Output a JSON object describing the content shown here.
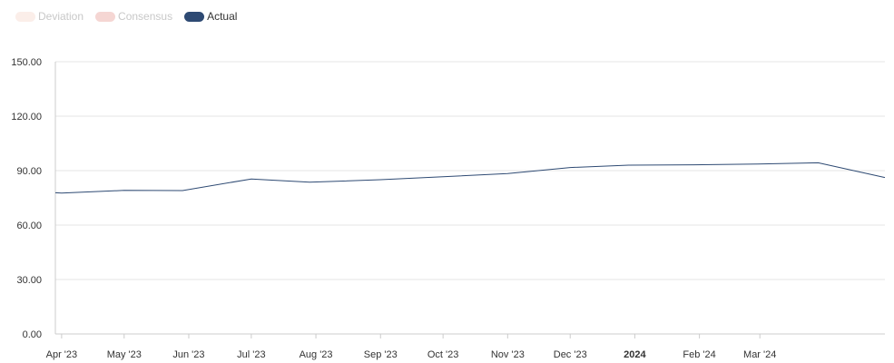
{
  "legend": [
    {
      "label": "Deviation",
      "color": "#fbeee9",
      "active": false
    },
    {
      "label": "Consensus",
      "color": "#f5d6d3",
      "active": false
    },
    {
      "label": "Actual",
      "color": "#2e4a73",
      "active": true
    }
  ],
  "chart_data": {
    "type": "line",
    "title": "",
    "xlabel": "",
    "ylabel": "",
    "ylim": [
      0,
      150
    ],
    "y_ticks": [
      "150.00",
      "120.00",
      "90.00",
      "60.00",
      "30.00",
      "0.00"
    ],
    "x_ticks": [
      {
        "label": "Apr '23",
        "date": "2023-04-01",
        "bold": false
      },
      {
        "label": "May '23",
        "date": "2023-05-01",
        "bold": false
      },
      {
        "label": "Jun '23",
        "date": "2023-06-01",
        "bold": false
      },
      {
        "label": "Jul '23",
        "date": "2023-07-01",
        "bold": false
      },
      {
        "label": "Aug '23",
        "date": "2023-08-01",
        "bold": false
      },
      {
        "label": "Sep '23",
        "date": "2023-09-01",
        "bold": false
      },
      {
        "label": "Oct '23",
        "date": "2023-10-01",
        "bold": false
      },
      {
        "label": "Nov '23",
        "date": "2023-11-01",
        "bold": false
      },
      {
        "label": "Dec '23",
        "date": "2023-12-01",
        "bold": false
      },
      {
        "label": "2024",
        "date": "2024-01-01",
        "bold": true
      },
      {
        "label": "Feb '24",
        "date": "2024-02-01",
        "bold": false
      },
      {
        "label": "Mar '24",
        "date": "2024-03-01",
        "bold": false
      }
    ],
    "grid": true,
    "legend_position": "top-left",
    "series": [
      {
        "name": "Actual",
        "color": "#2e4a73",
        "points": [
          {
            "x": "2023-03-29",
            "y": 77.8
          },
          {
            "x": "2023-04-01",
            "y": 77.6
          },
          {
            "x": "2023-05-01",
            "y": 79.1
          },
          {
            "x": "2023-05-29",
            "y": 79.0
          },
          {
            "x": "2023-07-01",
            "y": 85.4
          },
          {
            "x": "2023-07-29",
            "y": 83.6
          },
          {
            "x": "2023-09-01",
            "y": 85.0
          },
          {
            "x": "2023-10-01",
            "y": 86.6
          },
          {
            "x": "2023-11-01",
            "y": 88.4
          },
          {
            "x": "2023-12-01",
            "y": 91.7
          },
          {
            "x": "2023-12-29",
            "y": 93.0
          },
          {
            "x": "2024-01-29",
            "y": 93.2
          },
          {
            "x": "2024-02-29",
            "y": 93.6
          },
          {
            "x": "2024-03-29",
            "y": 94.3
          },
          {
            "x": "2024-04-30",
            "y": 86.2
          }
        ]
      }
    ]
  }
}
